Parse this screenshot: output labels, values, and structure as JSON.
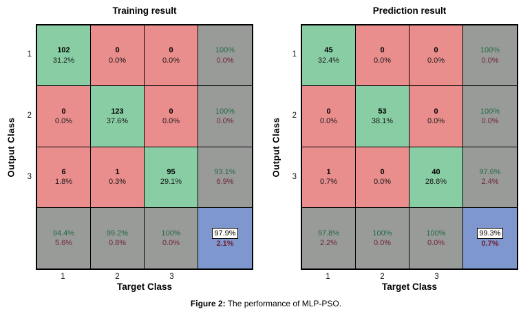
{
  "caption": {
    "label": "Figure 2:",
    "text": " The performance of MLP-PSO."
  },
  "colors": {
    "correct_bg": "#88CDA3",
    "incorrect_bg": "#E98D8D",
    "summary_bg": "#999B99",
    "total_bg": "#7E97CE",
    "good_text": "#226B41",
    "bad_text": "#722433"
  },
  "chart_data": [
    {
      "type": "heatmap",
      "title": "Training result",
      "xlabel": "Target Class",
      "ylabel": "Output Class",
      "xticklabels": [
        "1",
        "2",
        "3"
      ],
      "yticklabels": [
        "1",
        "2",
        "3"
      ],
      "matrix": [
        [
          102,
          0,
          0
        ],
        [
          0,
          123,
          0
        ],
        [
          6,
          1,
          95
        ]
      ],
      "cell_percent": [
        [
          "31.2%",
          "0.0%",
          "0.0%"
        ],
        [
          "0.0%",
          "37.6%",
          "0.0%"
        ],
        [
          "1.8%",
          "0.3%",
          "29.1%"
        ]
      ],
      "row_summary": [
        [
          "100%",
          "0.0%"
        ],
        [
          "100%",
          "0.0%"
        ],
        [
          "93.1%",
          "6.9%"
        ]
      ],
      "col_summary": [
        [
          "94.4%",
          "5.6%"
        ],
        [
          "99.2%",
          "0.8%"
        ],
        [
          "100%",
          "0.0%"
        ]
      ],
      "total": [
        "97.9%",
        "2.1%"
      ]
    },
    {
      "type": "heatmap",
      "title": "Prediction result",
      "xlabel": "Target Class",
      "ylabel": "Output Class",
      "xticklabels": [
        "1",
        "2",
        "3"
      ],
      "yticklabels": [
        "1",
        "2",
        "3"
      ],
      "matrix": [
        [
          45,
          0,
          0
        ],
        [
          0,
          53,
          0
        ],
        [
          1,
          0,
          40
        ]
      ],
      "cell_percent": [
        [
          "32.4%",
          "0.0%",
          "0.0%"
        ],
        [
          "0.0%",
          "38.1%",
          "0.0%"
        ],
        [
          "0.7%",
          "0.0%",
          "28.8%"
        ]
      ],
      "row_summary": [
        [
          "100%",
          "0.0%"
        ],
        [
          "100%",
          "0.0%"
        ],
        [
          "97.6%",
          "2.4%"
        ]
      ],
      "col_summary": [
        [
          "97.8%",
          "2.2%"
        ],
        [
          "100%",
          "0.0%"
        ],
        [
          "100%",
          "0.0%"
        ]
      ],
      "total": [
        "99.3%",
        "0.7%"
      ]
    }
  ]
}
